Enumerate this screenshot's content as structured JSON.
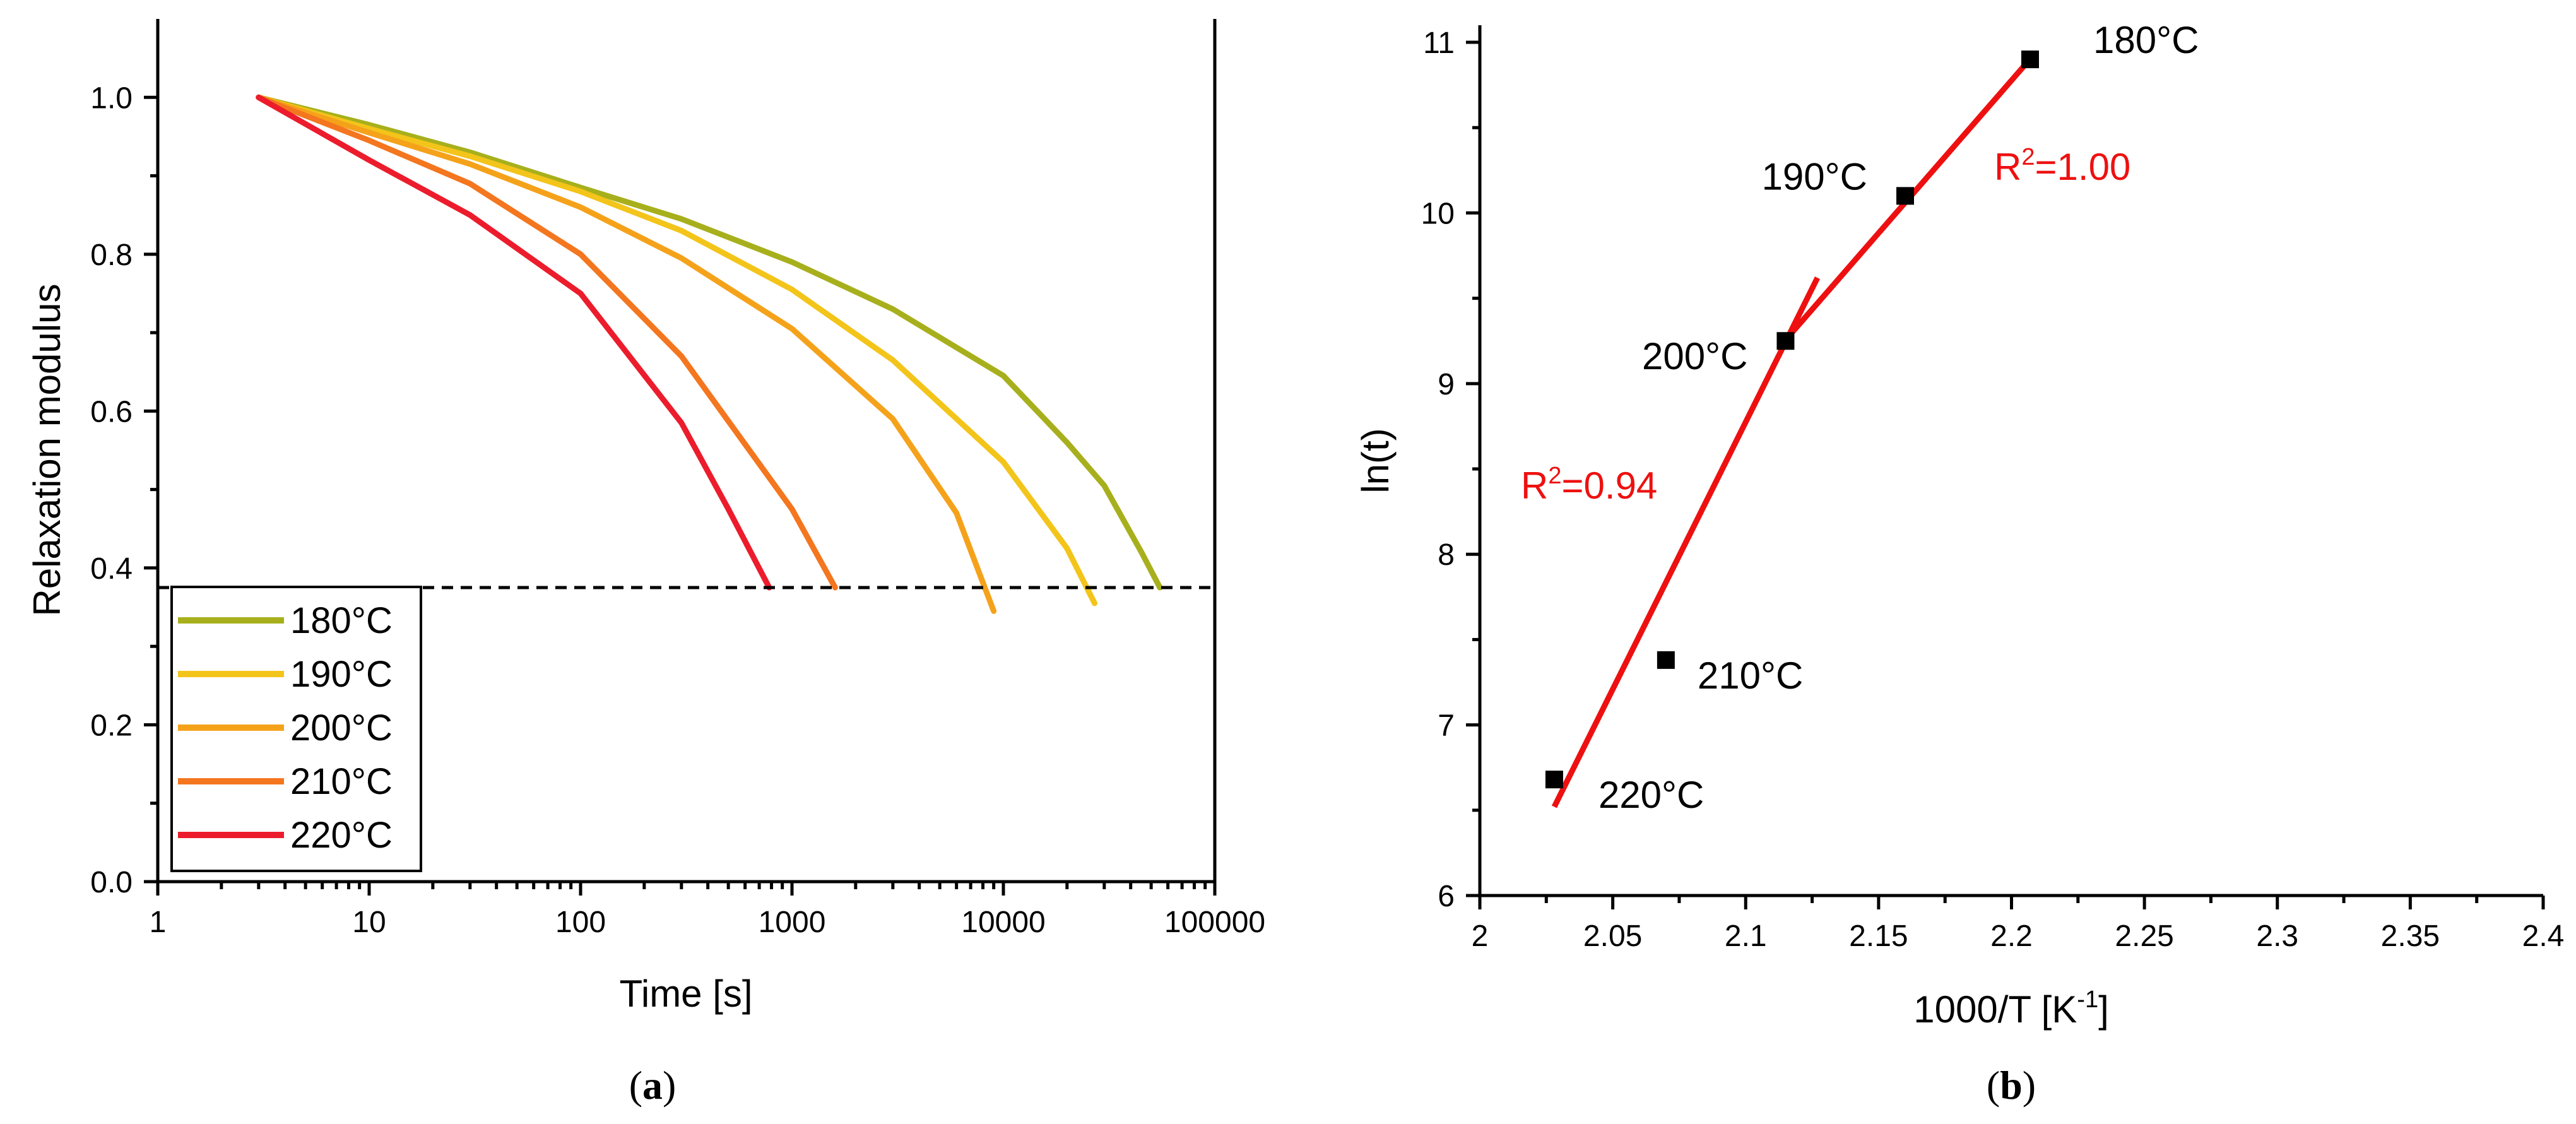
{
  "chart_data": [
    {
      "type": "line",
      "panel": "a",
      "caption_open": "(",
      "caption_letter": "a",
      "caption_close": ")",
      "title": "",
      "xlabel": "Time [s]",
      "ylabel": "Relaxation modulus",
      "xscale": "log",
      "xlim": [
        1,
        100000
      ],
      "ylim": [
        0.0,
        1.1
      ],
      "x_ticks": [
        1,
        10,
        100,
        1000,
        10000,
        100000
      ],
      "x_tick_labels": [
        "1",
        "10",
        "100",
        "1000",
        "10000",
        "100000"
      ],
      "y_ticks": [
        0.0,
        0.2,
        0.4,
        0.6,
        0.8,
        1.0
      ],
      "y_tick_labels": [
        "0.0",
        "0.2",
        "0.4",
        "0.6",
        "0.8",
        "1.0"
      ],
      "threshold": 0.375,
      "legend_position": "bottom-left",
      "series": [
        {
          "name": "180°C",
          "color": "#a7b01c",
          "x": [
            3,
            10,
            30,
            100,
            300,
            1000,
            3000,
            10000,
            20000,
            30000,
            45000,
            55000
          ],
          "y": [
            1.0,
            0.965,
            0.93,
            0.885,
            0.845,
            0.79,
            0.73,
            0.645,
            0.56,
            0.505,
            0.42,
            0.375
          ]
        },
        {
          "name": "190°C",
          "color": "#f3c41a",
          "x": [
            3,
            10,
            30,
            100,
            300,
            1000,
            3000,
            10000,
            20000,
            27000
          ],
          "y": [
            1.0,
            0.96,
            0.925,
            0.88,
            0.83,
            0.755,
            0.665,
            0.535,
            0.425,
            0.355
          ]
        },
        {
          "name": "200°C",
          "color": "#f5a21b",
          "x": [
            3,
            10,
            30,
            100,
            300,
            1000,
            3000,
            6000,
            9000
          ],
          "y": [
            1.0,
            0.955,
            0.915,
            0.86,
            0.795,
            0.705,
            0.59,
            0.47,
            0.345
          ]
        },
        {
          "name": "210°C",
          "color": "#f4761e",
          "x": [
            3,
            10,
            30,
            100,
            300,
            1000,
            1600
          ],
          "y": [
            1.0,
            0.945,
            0.89,
            0.8,
            0.67,
            0.475,
            0.375
          ]
        },
        {
          "name": "220°C",
          "color": "#ec1c2c",
          "x": [
            3,
            10,
            30,
            100,
            300,
            500,
            780
          ],
          "y": [
            1.0,
            0.92,
            0.85,
            0.75,
            0.585,
            0.475,
            0.375
          ]
        }
      ]
    },
    {
      "type": "scatter",
      "panel": "b",
      "caption_open": "(",
      "caption_letter": "b",
      "caption_close": ")",
      "title": "",
      "xlabel_main": "1000/T [K",
      "xlabel_sup": "-1",
      "xlabel_end": "]",
      "ylabel": "ln(t)",
      "xlim": [
        2.0,
        2.4
      ],
      "ylim": [
        6.0,
        11.1
      ],
      "x_ticks": [
        2.0,
        2.05,
        2.1,
        2.15,
        2.2,
        2.25,
        2.3,
        2.35,
        2.4
      ],
      "x_tick_labels": [
        "2",
        "2.05",
        "2.1",
        "2.15",
        "2.2",
        "2.25",
        "2.3",
        "2.35",
        "2.4"
      ],
      "y_ticks": [
        6,
        7,
        8,
        9,
        10,
        11
      ],
      "y_tick_labels": [
        "6",
        "7",
        "8",
        "9",
        "10",
        "11"
      ],
      "points": [
        {
          "x": 2.028,
          "y": 6.68,
          "label": "220°C"
        },
        {
          "x": 2.07,
          "y": 7.38,
          "label": "210°C"
        },
        {
          "x": 2.115,
          "y": 9.25,
          "label": "200°C"
        },
        {
          "x": 2.16,
          "y": 10.1,
          "label": "190°C"
        },
        {
          "x": 2.207,
          "y": 10.9,
          "label": "180°C"
        }
      ],
      "fits": [
        {
          "x": [
            2.028,
            2.127
          ],
          "y": [
            6.52,
            9.62
          ],
          "label_main": "R",
          "label_sup": "2",
          "label_end": "=0.94",
          "color": "#ee1010"
        },
        {
          "x": [
            2.113,
            2.208
          ],
          "y": [
            9.22,
            10.92
          ],
          "label_main": "R",
          "label_sup": "2",
          "label_end": "=1.00",
          "color": "#ee1010"
        }
      ]
    }
  ]
}
